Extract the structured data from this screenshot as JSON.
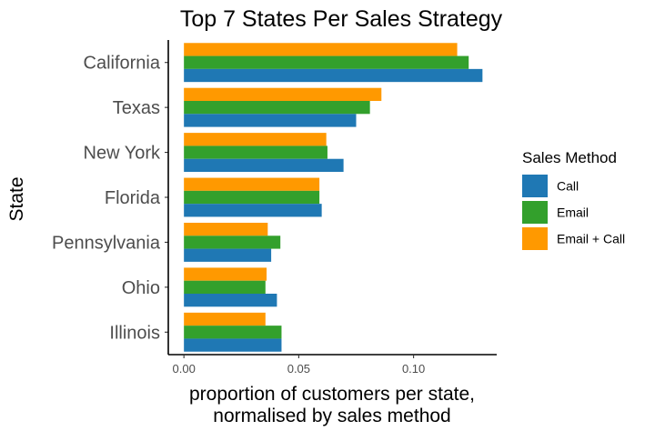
{
  "chart_data": {
    "type": "bar",
    "orientation": "horizontal",
    "title": "Top 7 States Per Sales Strategy",
    "xlabel": [
      "proportion of customers per state,",
      "normalised by sales method"
    ],
    "ylabel": "State",
    "categories": [
      "California",
      "Texas",
      "New York",
      "Florida",
      "Pennsylvania",
      "Ohio",
      "Illinois"
    ],
    "xlim": [
      -0.0068,
      0.1362
    ],
    "xticks": [
      0.0,
      0.05,
      0.1
    ],
    "xtick_labels": [
      "0.00",
      "0.05",
      "0.10"
    ],
    "grid": false,
    "legend": {
      "title": "Sales Method",
      "placement": "right"
    },
    "series": [
      {
        "name": "Email + Call",
        "color": "#ff9900",
        "values": [
          0.119,
          0.086,
          0.062,
          0.059,
          0.0365,
          0.036,
          0.0355
        ]
      },
      {
        "name": "Email",
        "color": "#33a02c",
        "values": [
          0.124,
          0.081,
          0.0625,
          0.059,
          0.042,
          0.0355,
          0.0425
        ]
      },
      {
        "name": "Call",
        "color": "#1f78b4",
        "values": [
          0.13,
          0.075,
          0.0695,
          0.06,
          0.038,
          0.0405,
          0.0425
        ]
      }
    ],
    "legend_order": [
      "Call",
      "Email",
      "Email + Call"
    ]
  }
}
